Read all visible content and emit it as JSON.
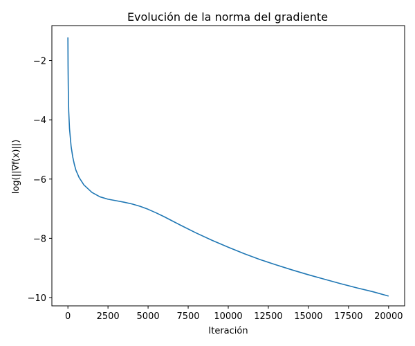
{
  "chart_data": {
    "type": "line",
    "title": "Evolución de la norma del gradiente",
    "xlabel": "Iteración",
    "ylabel": "log(||∇f(x)||)",
    "xlim": [
      -1000,
      21000
    ],
    "ylim": [
      -10.28,
      -0.82
    ],
    "xticks": [
      0,
      2500,
      5000,
      7500,
      10000,
      12500,
      15000,
      17500,
      20000
    ],
    "xtick_labels": [
      "0",
      "2500",
      "5000",
      "7500",
      "10000",
      "12500",
      "15000",
      "17500",
      "20000"
    ],
    "yticks": [
      -10,
      -8,
      -6,
      -4,
      -2
    ],
    "ytick_labels": [
      "−10",
      "−8",
      "−6",
      "−4",
      "−2"
    ],
    "grid": false,
    "series": [
      {
        "color": "#1f77b4",
        "x": [
          0,
          10,
          25,
          50,
          100,
          200,
          300,
          400,
          500,
          700,
          1000,
          1500,
          2000,
          2500,
          3000,
          3500,
          4000,
          4500,
          5000,
          5500,
          6000,
          7000,
          8000,
          9000,
          10000,
          11000,
          12000,
          13000,
          14000,
          15000,
          16000,
          17000,
          18000,
          19000,
          20000
        ],
        "y": [
          -1.22,
          -2.2,
          -3.0,
          -3.7,
          -4.3,
          -4.9,
          -5.25,
          -5.5,
          -5.7,
          -5.95,
          -6.2,
          -6.45,
          -6.6,
          -6.68,
          -6.73,
          -6.78,
          -6.84,
          -6.92,
          -7.02,
          -7.14,
          -7.27,
          -7.55,
          -7.82,
          -8.07,
          -8.3,
          -8.52,
          -8.72,
          -8.9,
          -9.07,
          -9.23,
          -9.38,
          -9.53,
          -9.67,
          -9.8,
          -9.95
        ]
      }
    ]
  }
}
